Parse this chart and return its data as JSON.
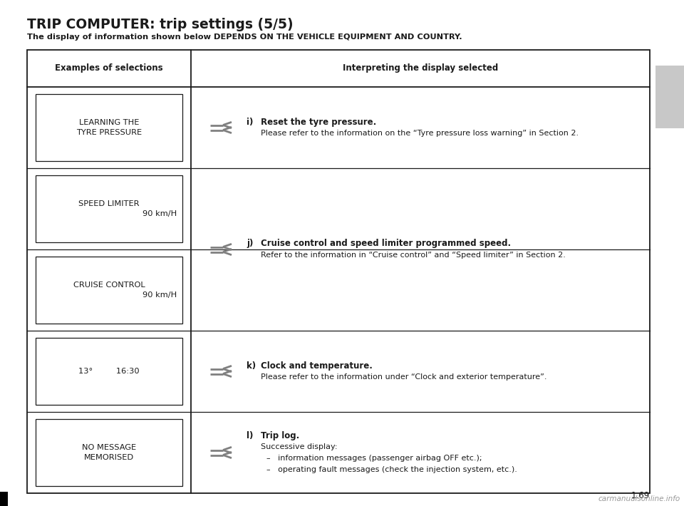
{
  "title": "TRIP COMPUTER: trip settings (5/5)",
  "subtitle": "The display of information shown below DEPENDS ON THE VEHICLE EQUIPMENT AND COUNTRY.",
  "col1_header": "Examples of selections",
  "col2_header": "Interpreting the display selected",
  "page_number": "1.69",
  "watermark": "carmanualsonline.info",
  "left_boxes": [
    {
      "lines": [
        "LEARNING THE",
        "TYRE PRESSURE"
      ]
    },
    {
      "lines": [
        "SPEED LIMITER",
        "90 km/H"
      ]
    },
    {
      "lines": [
        "CRUISE CONTROL",
        "90 km/H"
      ]
    },
    {
      "lines": [
        "13°         16:30"
      ]
    },
    {
      "lines": [
        "NO MESSAGE",
        "MEMORISED"
      ]
    }
  ],
  "entries": [
    {
      "rows": [
        0
      ],
      "letter": "i)",
      "bold": "Reset the tyre pressure.",
      "lines": [
        "Please refer to the information on the “Tyre pressure loss warning” in Section 2."
      ],
      "extra": []
    },
    {
      "rows": [
        1,
        2
      ],
      "letter": "j)",
      "bold": "Cruise control and speed limiter programmed speed.",
      "lines": [
        "Refer to the information in “Cruise control” and “Speed limiter” in Section 2."
      ],
      "extra": []
    },
    {
      "rows": [
        3
      ],
      "letter": "k)",
      "bold": "Clock and temperature.",
      "lines": [
        "Please refer to the information under “Clock and exterior temperature”."
      ],
      "extra": []
    },
    {
      "rows": [
        4
      ],
      "letter": "l)",
      "bold": "Trip log.",
      "lines": [
        "Successive display:"
      ],
      "extra": [
        "–   information messages (passenger airbag OFF etc.);",
        "–   operating fault messages (check the injection system, etc.)."
      ]
    }
  ],
  "bg_color": "#ffffff",
  "border_color": "#1a1a1a",
  "gray_tab_color": "#c8c8c8",
  "arrow_color": "#808080",
  "text_color": "#1a1a1a"
}
